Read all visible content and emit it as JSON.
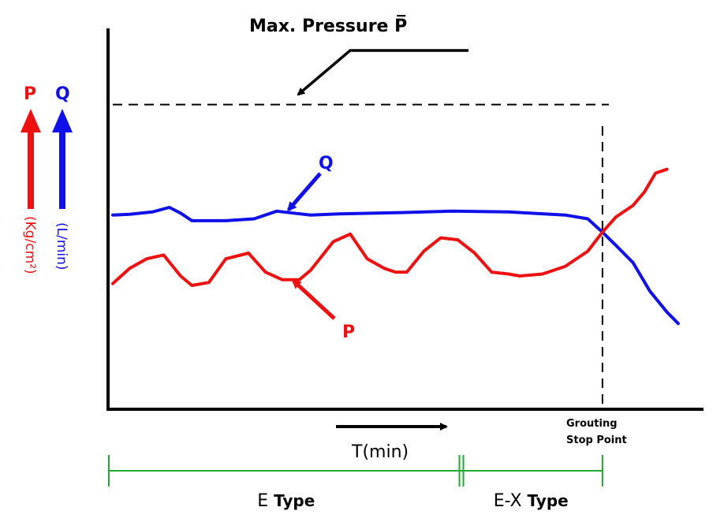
{
  "chart_data": {
    "type": "line",
    "title": "Max. Pressure P̅",
    "axes": {
      "x": {
        "label": "T(min)",
        "range": [
          0,
          100
        ]
      },
      "y": {
        "range": [
          0,
          100
        ]
      }
    },
    "max_pressure": {
      "label": "Max. Pressure P̅",
      "value": 80
    },
    "stop_point": {
      "x": 86.6,
      "label_line1": "Grouting",
      "label_line2": "Stop Point"
    },
    "series": [
      {
        "name": "Q",
        "unit": "(L/min)",
        "color": "#1010e8",
        "callout": "Q",
        "points": [
          [
            0,
            51
          ],
          [
            3,
            51.2
          ],
          [
            7,
            51.8
          ],
          [
            10,
            53
          ],
          [
            12,
            51.5
          ],
          [
            14,
            49.5
          ],
          [
            20,
            49.5
          ],
          [
            25,
            50
          ],
          [
            29,
            52
          ],
          [
            32,
            51.5
          ],
          [
            35,
            51
          ],
          [
            40,
            51.3
          ],
          [
            50,
            51.6
          ],
          [
            60,
            52
          ],
          [
            70,
            51.8
          ],
          [
            80,
            51
          ],
          [
            84,
            50
          ],
          [
            86.6,
            46.5
          ],
          [
            89,
            43
          ],
          [
            92,
            38.5
          ],
          [
            95,
            31
          ],
          [
            98,
            25.5
          ],
          [
            100,
            22.5
          ]
        ]
      },
      {
        "name": "P",
        "unit": "(Kg/cm²)",
        "color": "#ee1111",
        "callout": "P",
        "points": [
          [
            0,
            33
          ],
          [
            3,
            37
          ],
          [
            6,
            39.5
          ],
          [
            9,
            40.5
          ],
          [
            12,
            35
          ],
          [
            14,
            32.5
          ],
          [
            17,
            33.3
          ],
          [
            20,
            39.5
          ],
          [
            24,
            41
          ],
          [
            27,
            36
          ],
          [
            30,
            34
          ],
          [
            33,
            34
          ],
          [
            35,
            36.5
          ],
          [
            39,
            44
          ],
          [
            42,
            46
          ],
          [
            45,
            39.5
          ],
          [
            48,
            37
          ],
          [
            50,
            36
          ],
          [
            52,
            36
          ],
          [
            55,
            41.5
          ],
          [
            58,
            45
          ],
          [
            61,
            44.5
          ],
          [
            64,
            41
          ],
          [
            67,
            36
          ],
          [
            70,
            35.5
          ],
          [
            72,
            35
          ],
          [
            76,
            35.5
          ],
          [
            80,
            37.5
          ],
          [
            84,
            41.5
          ],
          [
            86.6,
            46.5
          ],
          [
            89,
            50.5
          ],
          [
            92,
            53.5
          ],
          [
            94,
            57
          ],
          [
            96,
            62
          ],
          [
            98,
            63
          ]
        ]
      }
    ],
    "ranges": [
      {
        "label": "E Type",
        "label_main": "E",
        "label_suffix": " Type",
        "from": 0,
        "to": 62
      },
      {
        "label": "E-X Type",
        "label_main": "E-X",
        "label_suffix": " Type",
        "from": 62,
        "to": 86.6
      }
    ]
  },
  "legend": {
    "p_symbol": "P",
    "q_symbol": "Q",
    "p_unit": "(Kg/cm²)",
    "q_unit": "(L/min)"
  }
}
